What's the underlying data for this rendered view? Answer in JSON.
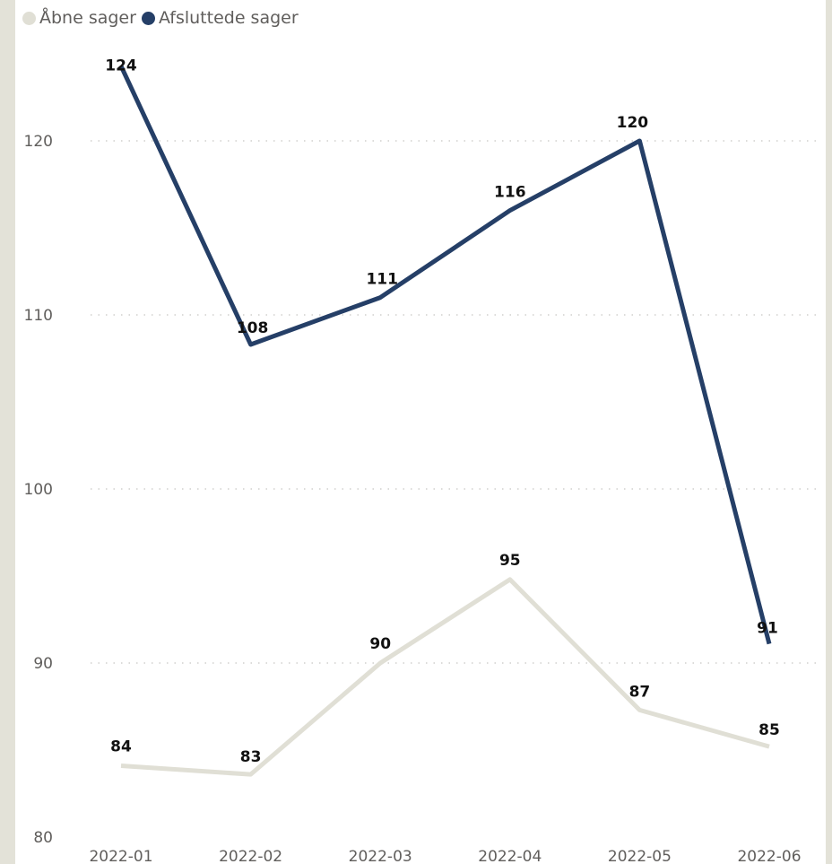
{
  "chart_data": {
    "type": "line",
    "categories": [
      "2022-01",
      "2022-02",
      "2022-03",
      "2022-04",
      "2022-05",
      "2022-06"
    ],
    "series": [
      {
        "name": "Åbne sager",
        "color": "#e0dfd5",
        "values": [
          84,
          83,
          90,
          95,
          87,
          85
        ],
        "plotted": [
          84.1,
          83.6,
          90.0,
          94.8,
          87.3,
          85.2
        ]
      },
      {
        "name": "Afsluttede sager",
        "color": "#253f67",
        "values": [
          124,
          108,
          111,
          116,
          120,
          91
        ],
        "plotted": [
          124.3,
          108.3,
          111.0,
          116.0,
          120.0,
          91.1
        ]
      }
    ],
    "yticks": [
      80,
      90,
      100,
      110,
      120
    ],
    "ylim": [
      80,
      124.5
    ],
    "grid": true,
    "legend_position": "top-left",
    "title": "",
    "xlabel": "",
    "ylabel": ""
  }
}
